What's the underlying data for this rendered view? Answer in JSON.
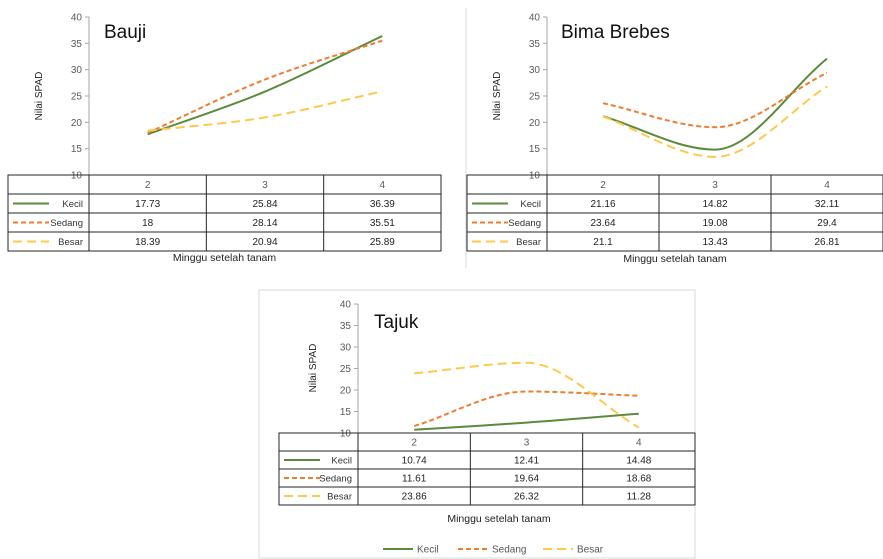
{
  "series_styles": {
    "Kecil": {
      "color": "#5b8a3c",
      "dash": ""
    },
    "Sedang": {
      "color": "#ed7d31",
      "dash": "5,3"
    },
    "Besar": {
      "color": "#ffc84a",
      "dash": "9,5"
    }
  },
  "legend": {
    "items": [
      "Kecil",
      "Sedang",
      "Besar"
    ]
  },
  "chart_data": [
    {
      "type": "line",
      "title": "Bauji",
      "ylabel": "Nilai  SPAD",
      "xlabel": "Minggu setelah tanam",
      "ylim": [
        10,
        40
      ],
      "yticks": [
        10,
        15,
        20,
        25,
        30,
        35,
        40
      ],
      "categories": [
        "2",
        "3",
        "4"
      ],
      "series": [
        {
          "name": "Kecil",
          "values": [
            17.73,
            25.84,
            36.39
          ],
          "labels": [
            "17.73",
            "25.84",
            "36.39"
          ]
        },
        {
          "name": "Sedang",
          "values": [
            18,
            28.14,
            35.51
          ],
          "labels": [
            "18",
            "28.14",
            "35.51"
          ]
        },
        {
          "name": "Besar",
          "values": [
            18.39,
            20.94,
            25.89
          ],
          "labels": [
            "18.39",
            "20.94",
            "25.89"
          ]
        }
      ]
    },
    {
      "type": "line",
      "title": "Bima Brebes",
      "ylabel": "Nilai SPAD",
      "xlabel": "Minggu setelah tanam",
      "ylim": [
        10,
        40
      ],
      "yticks": [
        10,
        15,
        20,
        25,
        30,
        35,
        40
      ],
      "categories": [
        "2",
        "3",
        "4"
      ],
      "series": [
        {
          "name": "Kecil",
          "values": [
            21.16,
            14.82,
            32.11
          ],
          "labels": [
            "21.16",
            "14.82",
            "32.11"
          ]
        },
        {
          "name": "Sedang",
          "values": [
            23.64,
            19.08,
            29.4
          ],
          "labels": [
            "23.64",
            "19.08",
            "29.4"
          ]
        },
        {
          "name": "Besar",
          "values": [
            21.1,
            13.43,
            26.81
          ],
          "labels": [
            "21.1",
            "13.43",
            "26.81"
          ]
        }
      ]
    },
    {
      "type": "line",
      "title": "Tajuk",
      "ylabel": "Nilai SPAD",
      "xlabel": "Minggu  setelah tanam",
      "ylim": [
        10,
        40
      ],
      "yticks": [
        10,
        15,
        20,
        25,
        30,
        35,
        40
      ],
      "categories": [
        "2",
        "3",
        "4"
      ],
      "series": [
        {
          "name": "Kecil",
          "values": [
            10.74,
            12.41,
            14.48
          ],
          "labels": [
            "10.74",
            "12.41",
            "14.48"
          ]
        },
        {
          "name": "Sedang",
          "values": [
            11.61,
            19.64,
            18.68
          ],
          "labels": [
            "11.61",
            "19.64",
            "18.68"
          ]
        },
        {
          "name": "Besar",
          "values": [
            23.86,
            26.32,
            11.28
          ],
          "labels": [
            "23.86",
            "26.32",
            "11.28"
          ]
        }
      ]
    }
  ]
}
